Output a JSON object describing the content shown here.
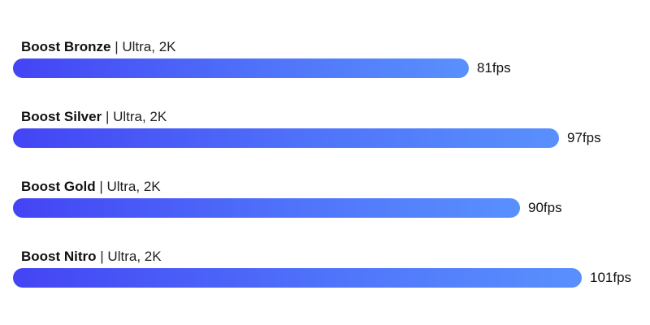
{
  "chart_data": {
    "type": "bar",
    "orientation": "horizontal",
    "unit": "fps",
    "categories": [
      "Boost Bronze",
      "Boost Silver",
      "Boost Gold",
      "Boost Nitro"
    ],
    "values": [
      81,
      97,
      90,
      101
    ],
    "bars": [
      {
        "name": "Boost Bronze",
        "spec": "| Ultra, 2K",
        "value": 81,
        "value_label": "81fps"
      },
      {
        "name": "Boost Silver",
        "spec": "| Ultra, 2K",
        "value": 97,
        "value_label": "97fps"
      },
      {
        "name": "Boost Gold",
        "spec": "| Ultra, 2K",
        "value": 90,
        "value_label": "90fps"
      },
      {
        "name": "Boost Nitro",
        "spec": "| Ultra, 2K",
        "value": 101,
        "value_label": "101fps"
      }
    ],
    "title": "",
    "xlabel": "",
    "ylabel": "",
    "grid": false,
    "colors": {
      "gradient_start": "#4444f4",
      "gradient_end": "#5990fd",
      "text": "#111111"
    }
  }
}
